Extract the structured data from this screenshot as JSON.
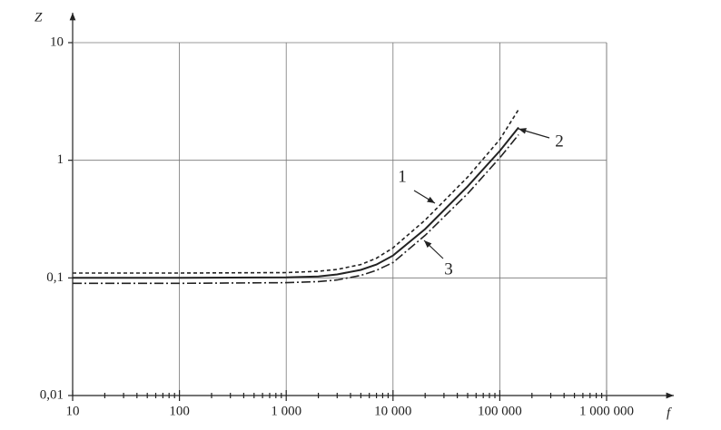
{
  "chart_data": {
    "type": "line",
    "x_label": "f",
    "y_label": "Z",
    "xscale": "log",
    "yscale": "log",
    "grid": true,
    "xlim": [
      10,
      1000000
    ],
    "ylim": [
      0.01,
      10
    ],
    "xticks": [
      {
        "value": 10,
        "label": "10"
      },
      {
        "value": 100,
        "label": "100"
      },
      {
        "value": 1000,
        "label": "1 000"
      },
      {
        "value": 10000,
        "label": "10 000"
      },
      {
        "value": 100000,
        "label": "100 000"
      },
      {
        "value": 1000000,
        "label": "1 000 000"
      }
    ],
    "xminorticks": [
      20,
      30,
      40,
      50,
      60,
      70,
      80,
      90,
      200,
      300,
      400,
      500,
      600,
      700,
      800,
      900,
      2000,
      3000,
      4000,
      5000,
      6000,
      7000,
      8000,
      9000,
      20000,
      30000,
      40000,
      50000,
      60000,
      70000,
      80000,
      90000,
      200000,
      300000,
      400000,
      500000,
      600000,
      700000,
      800000,
      900000
    ],
    "yticks": [
      {
        "value": 0.01,
        "label": "0,01"
      },
      {
        "value": 0.1,
        "label": "0,1"
      },
      1,
      10
    ],
    "x": [
      10,
      100,
      1000,
      2000,
      3000,
      5000,
      7000,
      10000,
      20000,
      50000,
      100000,
      150000
    ],
    "series": [
      {
        "name": "1",
        "color": "#222",
        "style": "dashed",
        "values": [
          0.11,
          0.11,
          0.111,
          0.114,
          0.118,
          0.13,
          0.147,
          0.18,
          0.31,
          0.72,
          1.5,
          2.7
        ]
      },
      {
        "name": "2",
        "color": "#222",
        "style": "solid",
        "values": [
          0.1,
          0.1,
          0.101,
          0.103,
          0.107,
          0.117,
          0.13,
          0.155,
          0.26,
          0.6,
          1.2,
          1.9
        ]
      },
      {
        "name": "3",
        "color": "#222",
        "style": "dashdot",
        "values": [
          0.09,
          0.09,
          0.091,
          0.093,
          0.096,
          0.105,
          0.116,
          0.135,
          0.23,
          0.52,
          1.05,
          1.65
        ]
      }
    ]
  }
}
